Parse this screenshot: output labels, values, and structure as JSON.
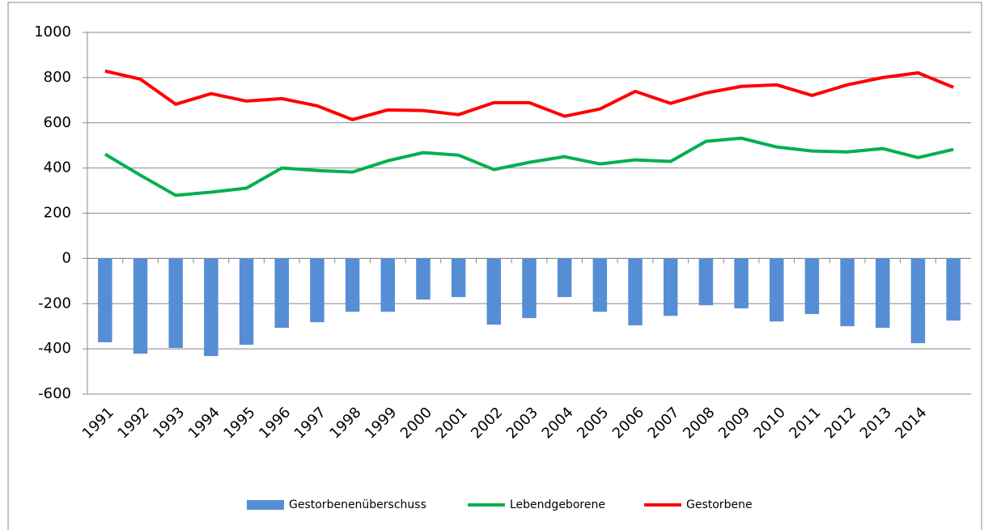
{
  "chart_data": {
    "type": "combo",
    "categories": [
      "1991",
      "1992",
      "1993",
      "1994",
      "1995",
      "1996",
      "1997",
      "1998",
      "1999",
      "2000",
      "2001",
      "2002",
      "2003",
      "2004",
      "2005",
      "2006",
      "2007",
      "2008",
      "2009",
      "2010",
      "2011",
      "2012",
      "2013",
      "2014",
      null
    ],
    "series": [
      {
        "name": "Gestorbenenüberschuss",
        "type": "bar",
        "color": "#558ed5",
        "values": [
          -371,
          -421,
          -396,
          -432,
          -382,
          -307,
          -282,
          -236,
          -236,
          -182,
          -171,
          -293,
          -264,
          -171,
          -236,
          -296,
          -254,
          -207,
          -221,
          -279,
          -246,
          -300,
          -307,
          -375,
          -275
        ]
      },
      {
        "name": "Lebendgeborene",
        "type": "line",
        "color": "#00b050",
        "values": [
          461,
          368,
          279,
          293,
          311,
          400,
          389,
          382,
          432,
          468,
          457,
          393,
          425,
          450,
          418,
          436,
          429,
          518,
          532,
          493,
          475,
          471,
          486,
          446,
          482
        ]
      },
      {
        "name": "Gestorbene",
        "type": "line",
        "color": "#ff0000",
        "values": [
          829,
          793,
          682,
          729,
          696,
          707,
          675,
          614,
          657,
          654,
          636,
          689,
          689,
          629,
          661,
          739,
          686,
          732,
          761,
          768,
          721,
          768,
          800,
          821,
          757
        ]
      }
    ],
    "ylim": [
      -600,
      1000
    ],
    "yticks": [
      -600,
      -400,
      -200,
      0,
      200,
      400,
      600,
      800,
      1000
    ],
    "grid": true,
    "legend": "bottom"
  }
}
